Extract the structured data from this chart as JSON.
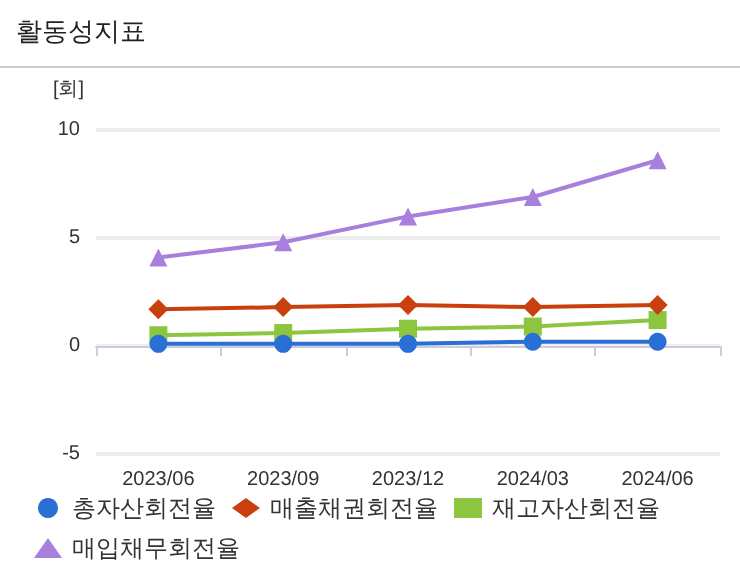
{
  "chart_data": {
    "type": "line",
    "title": "활동성지표",
    "ylabel": "[회]",
    "categories": [
      "2023/06",
      "2023/09",
      "2023/12",
      "2024/03",
      "2024/06"
    ],
    "series": [
      {
        "name": "총자산회전율",
        "color": "#2a6fd6",
        "marker": "circle",
        "values": [
          0.1,
          0.1,
          0.1,
          0.2,
          0.2
        ]
      },
      {
        "name": "매출채권회전율",
        "color": "#c9400e",
        "marker": "diamond",
        "values": [
          1.7,
          1.8,
          1.9,
          1.8,
          1.9
        ]
      },
      {
        "name": "재고자산회전율",
        "color": "#8cc63f",
        "marker": "square",
        "values": [
          0.5,
          0.6,
          0.8,
          0.9,
          1.2
        ]
      },
      {
        "name": "매입채무회전율",
        "color": "#a77fdc",
        "marker": "triangle",
        "values": [
          4.1,
          4.8,
          6.0,
          6.9,
          8.6
        ]
      }
    ],
    "ylim": [
      -5,
      10
    ],
    "yticks": [
      -5,
      0,
      5,
      10
    ],
    "grid": "y",
    "legend": "bottom"
  }
}
